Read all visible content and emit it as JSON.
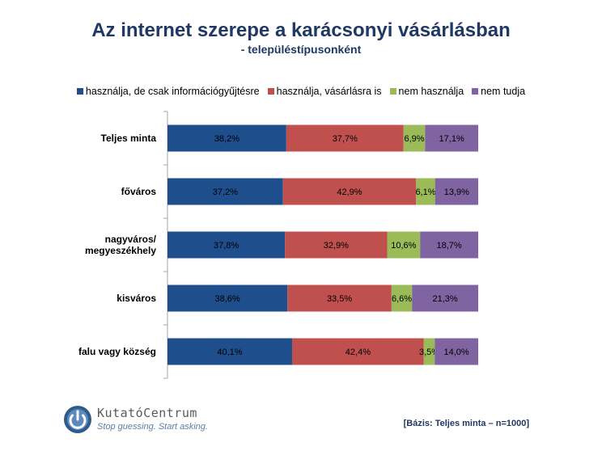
{
  "header": {
    "title": "Az internet szerepe a karácsonyi vásárlásban",
    "subtitle": "- településtípusonként"
  },
  "logo": {
    "name": "KutatóCentrum",
    "tagline": "Stop guessing. Start asking."
  },
  "footnote": "[Bázis: Teljes minta – n=1000]",
  "chart_data": {
    "type": "bar",
    "orientation": "horizontal",
    "stacked": true,
    "normalized": true,
    "title": "Az internet szerepe a karácsonyi vásárlásban",
    "subtitle": "- településtípusonként",
    "legend_position": "top",
    "categories": [
      [
        "Teljes minta"
      ],
      [
        "főváros"
      ],
      [
        "nagyváros/",
        "megyeszékhely"
      ],
      [
        "kisváros"
      ],
      [
        "falu vagy község"
      ]
    ],
    "series": [
      {
        "name": "használja, de csak információgyűjtésre",
        "color": "#1f4e8c",
        "values": [
          38.2,
          37.2,
          37.8,
          38.6,
          40.1
        ],
        "labels": [
          "38,2%",
          "37,2%",
          "37,8%",
          "38,6%",
          "40,1%"
        ]
      },
      {
        "name": "használja, vásárlásra is",
        "color": "#c0504d",
        "values": [
          37.7,
          42.9,
          32.9,
          33.5,
          42.4
        ],
        "labels": [
          "37,7%",
          "42,9%",
          "32,9%",
          "33,5%",
          "42,4%"
        ]
      },
      {
        "name": "nem használja",
        "color": "#9bbb59",
        "values": [
          6.9,
          6.1,
          10.6,
          6.6,
          3.5
        ],
        "labels": [
          "6,9%",
          "6,1%",
          "10,6%",
          "6,6%",
          "3,5%"
        ]
      },
      {
        "name": "nem tudja",
        "color": "#8064a2",
        "values": [
          17.1,
          13.9,
          18.7,
          21.3,
          14.0
        ],
        "labels": [
          "17,1%",
          "13,9%",
          "18,7%",
          "21,3%",
          "14,0%"
        ]
      }
    ]
  }
}
